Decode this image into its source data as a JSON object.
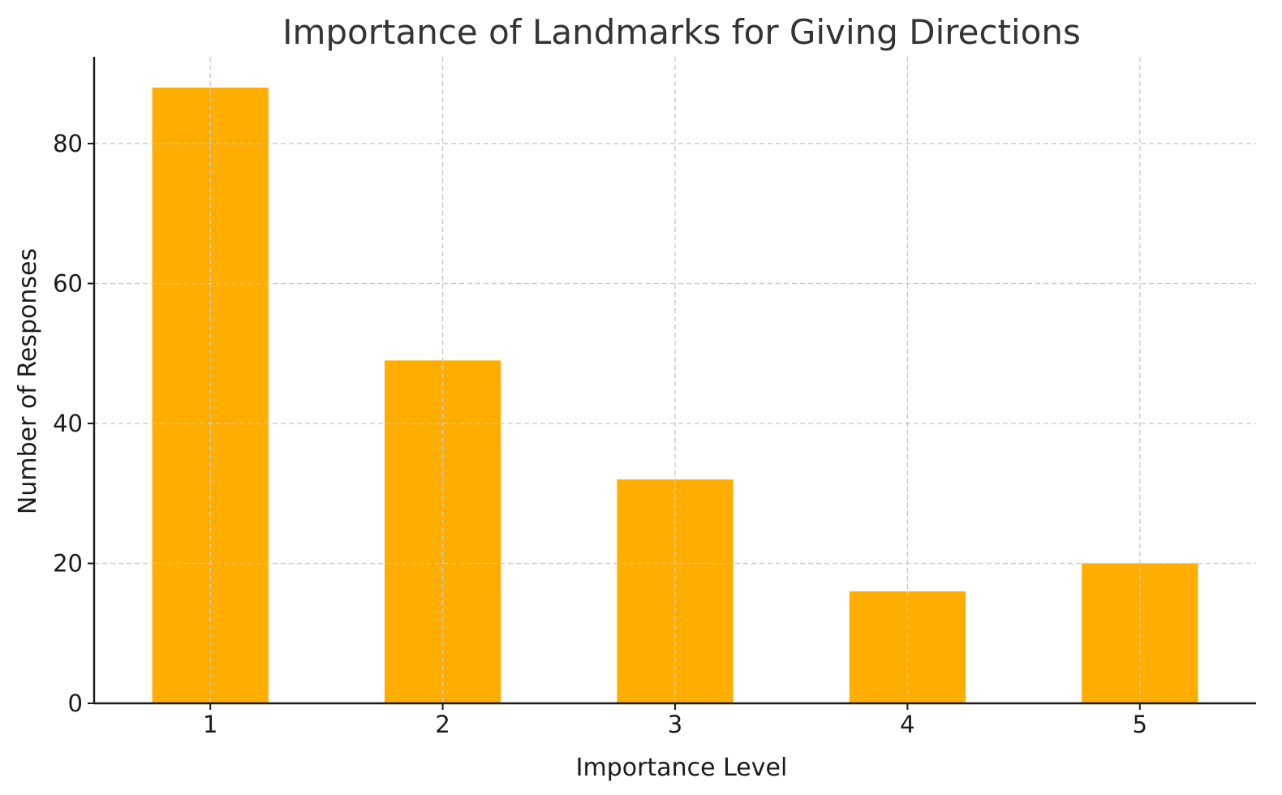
{
  "chart_data": {
    "type": "bar",
    "title": "Importance of Landmarks for Giving Directions",
    "xlabel": "Importance Level",
    "ylabel": "Number of Responses",
    "categories": [
      "1",
      "2",
      "3",
      "4",
      "5"
    ],
    "values": [
      88,
      49,
      32,
      16,
      20
    ],
    "ylim": [
      0,
      92.4
    ],
    "yticks": [
      0,
      20,
      40,
      60,
      80
    ],
    "grid": true,
    "bar_color": "#FFAE00"
  }
}
